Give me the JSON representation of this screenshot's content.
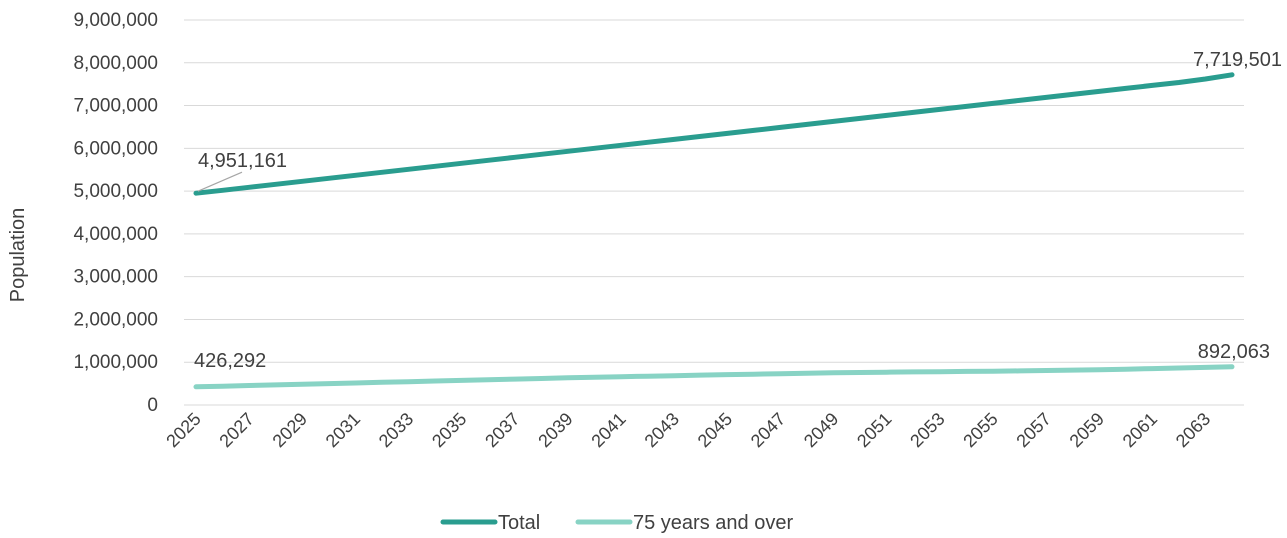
{
  "chart_data": {
    "type": "line",
    "title": "",
    "xlabel": "",
    "ylabel": "Population",
    "ylim": [
      0,
      9000000
    ],
    "yticks": [
      "0",
      "1,000,000",
      "2,000,000",
      "3,000,000",
      "4,000,000",
      "5,000,000",
      "6,000,000",
      "7,000,000",
      "8,000,000",
      "9,000,000"
    ],
    "x": [
      2025,
      2026,
      2027,
      2028,
      2029,
      2030,
      2031,
      2032,
      2033,
      2034,
      2035,
      2036,
      2037,
      2038,
      2039,
      2040,
      2041,
      2042,
      2043,
      2044,
      2045,
      2046,
      2047,
      2048,
      2049,
      2050,
      2051,
      2052,
      2053,
      2054,
      2055,
      2056,
      2057,
      2058,
      2059,
      2060,
      2061,
      2062,
      2063,
      2064
    ],
    "xticks": [
      "2025",
      "2027",
      "2029",
      "2031",
      "2033",
      "2035",
      "2037",
      "2039",
      "2041",
      "2043",
      "2045",
      "2047",
      "2049",
      "2051",
      "2053",
      "2055",
      "2057",
      "2059",
      "2061",
      "2063"
    ],
    "grid": true,
    "legend_position": "bottom",
    "series": [
      {
        "name": "Total",
        "color": "#2a9d8f",
        "values": [
          4951161,
          5020000,
          5090000,
          5160000,
          5230000,
          5300000,
          5370000,
          5440000,
          5510000,
          5580000,
          5650000,
          5720000,
          5790000,
          5860000,
          5930000,
          6000000,
          6070000,
          6140000,
          6210000,
          6280000,
          6350000,
          6420000,
          6490000,
          6560000,
          6630000,
          6700000,
          6770000,
          6840000,
          6910000,
          6980000,
          7050000,
          7120000,
          7190000,
          7260000,
          7330000,
          7400000,
          7470000,
          7540000,
          7620000,
          7719501
        ],
        "start_label": "4,951,161",
        "end_label": "7,719,501"
      },
      {
        "name": "75 years and over",
        "color": "#88d3c4",
        "values": [
          426292,
          440000,
          455000,
          470000,
          485000,
          500000,
          515000,
          530000,
          545000,
          560000,
          575000,
          590000,
          605000,
          620000,
          635000,
          650000,
          662000,
          674000,
          686000,
          698000,
          710000,
          721000,
          732000,
          742000,
          752000,
          760000,
          767000,
          773000,
          779000,
          785000,
          791000,
          798000,
          806000,
          815000,
          826000,
          838000,
          851000,
          864000,
          878000,
          892063
        ],
        "start_label": "426,292",
        "end_label": "892,063"
      }
    ]
  }
}
